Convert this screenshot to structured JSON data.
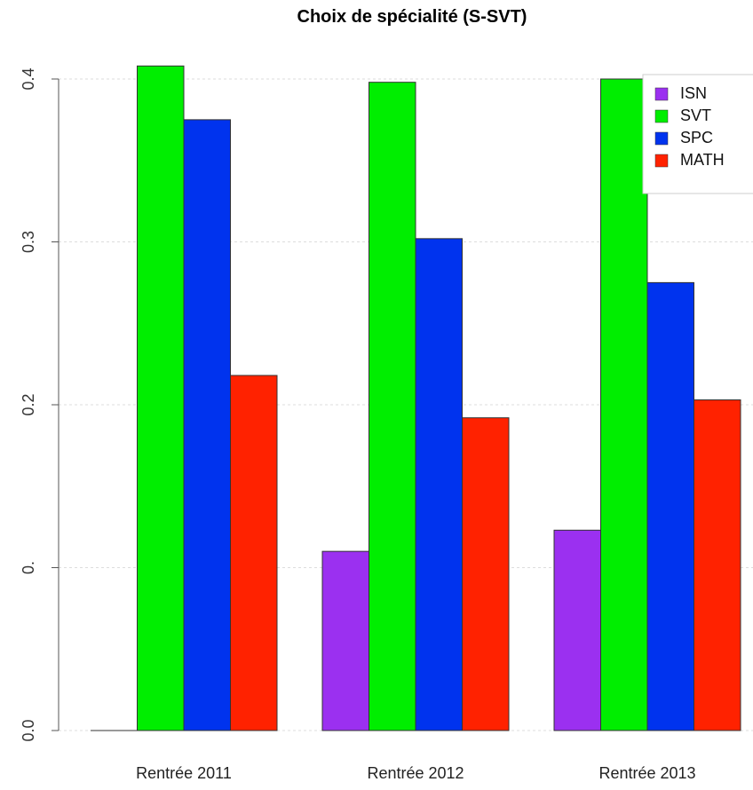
{
  "chart_data": {
    "type": "bar",
    "title": "Choix de spécialité (S-SVT)",
    "xlabel": "",
    "ylabel": "",
    "categories": [
      "Rentrée 2011",
      "Rentrée 2012",
      "Rentrée 2013"
    ],
    "series": [
      {
        "name": "ISN",
        "color": "#9b30f0",
        "values": [
          0.0,
          0.11,
          0.123
        ]
      },
      {
        "name": "SVT",
        "color": "#00ee00",
        "values": [
          0.408,
          0.398,
          0.4
        ]
      },
      {
        "name": "SPC",
        "color": "#0033ee",
        "values": [
          0.375,
          0.302,
          0.275
        ]
      },
      {
        "name": "MATH",
        "color": "#ff2200",
        "values": [
          0.218,
          0.192,
          0.203
        ]
      }
    ],
    "ylim": [
      0,
      0.4
    ],
    "yticks": [
      {
        "value": 0.0,
        "label": "0.0"
      },
      {
        "value": 0.1,
        "label": "0."
      },
      {
        "value": 0.2,
        "label": "0.2"
      },
      {
        "value": 0.3,
        "label": "0.3"
      },
      {
        "value": 0.4,
        "label": "0.4"
      }
    ],
    "grid": true,
    "grid_axis": "y",
    "grid_color": "#dddddd",
    "axis_color": "#555555",
    "legend": {
      "position": "top-right"
    }
  }
}
